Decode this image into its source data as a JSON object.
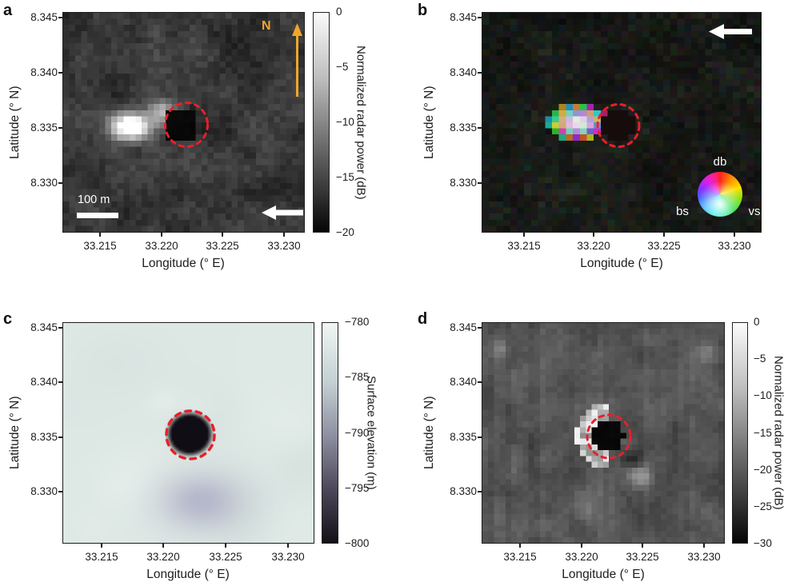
{
  "figure": {
    "colors": {
      "dashed_circle": "#e8202b",
      "north_arrow": "#f0a62b",
      "annotation_white": "#ffffff",
      "axis_text": "#1d1d1f"
    },
    "shared": {
      "x_label": "Longitude (° E)",
      "y_label": "Latitude (° N)",
      "x_ticks": [
        "33.215",
        "33.220",
        "33.225",
        "33.230"
      ],
      "y_ticks": [
        "8.345",
        "8.340",
        "8.335",
        "8.330"
      ]
    },
    "panels": [
      {
        "id": "a",
        "label": "a",
        "colorbar": {
          "label": "Normalized radar power (dB)",
          "ticks": [
            "0",
            "−5",
            "−10",
            "−15",
            "−20"
          ]
        },
        "north": "N",
        "scalebar": "100 m"
      },
      {
        "id": "b",
        "label": "b",
        "wheel": {
          "top": "db",
          "left": "bs",
          "right": "vs"
        }
      },
      {
        "id": "c",
        "label": "c",
        "colorbar": {
          "label": "Surface elevation (m)",
          "ticks": [
            "−780",
            "−785",
            "−790",
            "−795",
            "−800"
          ]
        }
      },
      {
        "id": "d",
        "label": "d",
        "colorbar": {
          "label": "Normalized radar power (dB)",
          "ticks": [
            "0",
            "−5",
            "−10",
            "−15",
            "−20",
            "−25",
            "−30"
          ]
        }
      }
    ]
  },
  "chart_data": [
    {
      "type": "heatmap",
      "panel": "a",
      "title": "Normalized radar power map around pit",
      "xlabel": "Longitude (° E)",
      "ylabel": "Latitude (° N)",
      "x_ticks": [
        33.215,
        33.22,
        33.225,
        33.23
      ],
      "y_ticks": [
        8.345,
        8.34,
        8.335,
        8.33
      ],
      "x_range": [
        33.212,
        33.2325
      ],
      "y_range": [
        8.3265,
        8.3465
      ],
      "colorbar": {
        "label": "Normalized radar power (dB)",
        "max": 0,
        "min": -20,
        "ticks": [
          0,
          -5,
          -10,
          -15,
          -20
        ],
        "colormap": "grayscale, white = 0 dB, black = −20 dB"
      },
      "features": [
        {
          "name": "radar-dark pit marked by red dashed circle",
          "lon": 33.2215,
          "lat": 8.3353,
          "value_db": -20
        },
        {
          "name": "radar-bright deposit west of pit",
          "lon": 33.218,
          "lat": 8.335,
          "value_db": -1
        },
        {
          "name": "speckled background terrain",
          "value_db": -13
        }
      ],
      "annotations": [
        "N north arrow pointing up (orange)",
        "100 m scale bar (white)",
        "white arrow pointing left (look direction)"
      ]
    },
    {
      "type": "heatmap",
      "panel": "b",
      "title": "Polarimetric color composite",
      "xlabel": "Longitude (° E)",
      "ylabel": "Latitude (° N)",
      "x_ticks": [
        33.215,
        33.22,
        33.225,
        33.23
      ],
      "y_ticks": [
        8.345,
        8.34,
        8.335,
        8.33
      ],
      "x_range": [
        33.212,
        33.2325
      ],
      "y_range": [
        8.3265,
        8.3465
      ],
      "legend": {
        "type": "color wheel",
        "top": "db",
        "bottom_left": "bs",
        "bottom_right": "vs"
      },
      "features": [
        {
          "name": "dark pit marked by red dashed circle",
          "lon": 33.2215,
          "lat": 8.3353
        },
        {
          "name": "multicolored full-hue scattering region west of pit",
          "lon": 33.2185,
          "lat": 8.335
        },
        {
          "name": "near-black noisy background"
        }
      ],
      "annotations": [
        "white arrow pointing left (look direction)"
      ]
    },
    {
      "type": "heatmap",
      "panel": "c",
      "title": "Surface elevation map",
      "xlabel": "Longitude (° E)",
      "ylabel": "Latitude (° N)",
      "x_ticks": [
        33.215,
        33.22,
        33.225,
        33.23
      ],
      "y_ticks": [
        8.345,
        8.34,
        8.335,
        8.33
      ],
      "x_range": [
        33.212,
        33.2325
      ],
      "y_range": [
        8.3265,
        8.3465
      ],
      "colorbar": {
        "label": "Surface elevation (m)",
        "max": -780,
        "min": -800,
        "ticks": [
          -780,
          -785,
          -790,
          -795,
          -800
        ],
        "colormap": "pale blue-white to dark purple-black"
      },
      "features": [
        {
          "name": "pit with dark floor, red dashed circle on rim",
          "lon": 33.2215,
          "lat": 8.3355,
          "elevation_m": -800
        },
        {
          "name": "surrounding smooth plains",
          "elevation_m": -782
        },
        {
          "name": "shallow purple depression south of pit",
          "lon": 33.2235,
          "lat": 8.3295,
          "elevation_m": -789
        }
      ]
    },
    {
      "type": "heatmap",
      "panel": "d",
      "title": "Normalized radar power map (second dataset)",
      "xlabel": "Longitude (° E)",
      "ylabel": "Latitude (° N)",
      "x_ticks": [
        33.215,
        33.22,
        33.225,
        33.23
      ],
      "y_ticks": [
        8.345,
        8.34,
        8.335,
        8.33
      ],
      "x_range": [
        33.212,
        33.2325
      ],
      "y_range": [
        8.3265,
        8.3465
      ],
      "colorbar": {
        "label": "Normalized radar power (dB)",
        "max": 0,
        "min": -30,
        "ticks": [
          0,
          -5,
          -10,
          -15,
          -20,
          -25,
          -30
        ],
        "colormap": "grayscale"
      },
      "features": [
        {
          "name": "radar-dark pit floor, red dashed circle",
          "lon": 33.222,
          "lat": 8.3352,
          "value_db": -30
        },
        {
          "name": "bright crescent on western inner wall",
          "lon": 33.22,
          "lat": 8.335,
          "value_db": -3
        },
        {
          "name": "uniform gray background",
          "value_db": -19
        }
      ]
    }
  ]
}
